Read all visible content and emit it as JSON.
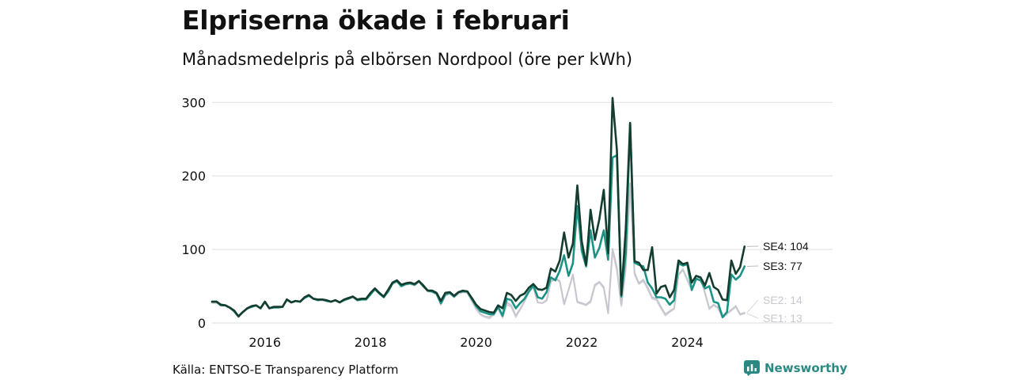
{
  "header": {
    "title": "Elpriserna ökade i februari",
    "subtitle": "Månadsmedelpris på elbörsen Nordpool (öre per kWh)"
  },
  "footer": {
    "source": "Källa: ENTSO-E Transparency Platform",
    "brand": "Newsworthy"
  },
  "colors": {
    "SE4": "#153d2f",
    "SE3": "#1a9384",
    "SE2": "#c7c5ce",
    "SE1": "#d7d5dc",
    "grid": "#e3e3e3",
    "brand": "#2a8a83"
  },
  "chart_data": {
    "type": "line",
    "x_start": "2015-01",
    "x_step": "month",
    "xlim": [
      "2015-01",
      "2026-10"
    ],
    "x_ticks": [
      "2016",
      "2018",
      "2020",
      "2022",
      "2024"
    ],
    "ylim": [
      0,
      310
    ],
    "y_ticks": [
      0,
      100,
      200,
      300
    ],
    "grid": true,
    "end_labels": [
      "SE4: 104",
      "SE3: 77",
      "SE2: 14",
      "SE1: 13"
    ],
    "series": [
      {
        "name": "SE4",
        "values": [
          29,
          29,
          25,
          24,
          21,
          17,
          9,
          15,
          20,
          23,
          24,
          20,
          29,
          20,
          22,
          22,
          22,
          32,
          28,
          30,
          29,
          35,
          38,
          33,
          32,
          32,
          31,
          29,
          31,
          28,
          32,
          34,
          36,
          32,
          33,
          33,
          41,
          47,
          41,
          36,
          45,
          55,
          58,
          52,
          54,
          55,
          53,
          57,
          51,
          44,
          44,
          41,
          30,
          41,
          42,
          37,
          42,
          44,
          43,
          34,
          25,
          19,
          17,
          15,
          14,
          24,
          20,
          41,
          38,
          30,
          37,
          40,
          48,
          53,
          46,
          45,
          48,
          74,
          70,
          85,
          123,
          89,
          108,
          187,
          111,
          79,
          154,
          113,
          141,
          181,
          95,
          306,
          235,
          38,
          128,
          272,
          84,
          82,
          72,
          72,
          103,
          40,
          49,
          51,
          35,
          45,
          85,
          80,
          82,
          55,
          64,
          62,
          51,
          68,
          49,
          45,
          32,
          31,
          85,
          67,
          76,
          104
        ],
        "label": "SE4: 104"
      },
      {
        "name": "SE3",
        "values": [
          29,
          29,
          24,
          24,
          21,
          16,
          9,
          15,
          20,
          22,
          24,
          20,
          29,
          20,
          21,
          21,
          22,
          32,
          28,
          30,
          29,
          34,
          37,
          33,
          31,
          32,
          30,
          29,
          31,
          28,
          31,
          33,
          36,
          31,
          32,
          32,
          39,
          46,
          40,
          35,
          43,
          54,
          57,
          50,
          53,
          54,
          52,
          57,
          50,
          44,
          43,
          40,
          27,
          39,
          41,
          36,
          42,
          43,
          43,
          33,
          23,
          16,
          14,
          12,
          12,
          22,
          10,
          33,
          31,
          20,
          27,
          33,
          43,
          51,
          35,
          33,
          42,
          62,
          58,
          71,
          92,
          64,
          81,
          159,
          98,
          77,
          126,
          89,
          102,
          126,
          86,
          225,
          228,
          36,
          95,
          272,
          82,
          79,
          77,
          55,
          47,
          35,
          35,
          33,
          25,
          31,
          81,
          78,
          80,
          45,
          60,
          58,
          47,
          50,
          29,
          27,
          8,
          15,
          66,
          59,
          64,
          77
        ],
        "label": "SE3: 77"
      },
      {
        "name": "SE2",
        "values": [
          28,
          28,
          24,
          24,
          21,
          16,
          8,
          15,
          19,
          22,
          24,
          20,
          28,
          20,
          21,
          21,
          22,
          31,
          28,
          30,
          29,
          34,
          37,
          33,
          31,
          31,
          30,
          29,
          31,
          28,
          31,
          33,
          35,
          31,
          32,
          32,
          39,
          46,
          40,
          35,
          42,
          53,
          56,
          50,
          52,
          53,
          51,
          56,
          49,
          43,
          42,
          39,
          25,
          37,
          40,
          35,
          40,
          42,
          41,
          30,
          19,
          12,
          9,
          8,
          12,
          20,
          8,
          28,
          24,
          10,
          19,
          30,
          42,
          49,
          28,
          27,
          31,
          56,
          61,
          57,
          26,
          45,
          66,
          29,
          27,
          25,
          30,
          52,
          56,
          49,
          14,
          101,
          75,
          25,
          77,
          190,
          68,
          54,
          59,
          48,
          35,
          33,
          22,
          12,
          16,
          20,
          66,
          73,
          59,
          45,
          60,
          62,
          41,
          20,
          25,
          21,
          8,
          13,
          18,
          23,
          12,
          14
        ],
        "label": "SE2: 14"
      },
      {
        "name": "SE1",
        "values": [
          27,
          27,
          24,
          24,
          21,
          16,
          8,
          15,
          19,
          22,
          24,
          20,
          28,
          20,
          21,
          21,
          22,
          31,
          28,
          30,
          29,
          34,
          37,
          33,
          31,
          31,
          30,
          29,
          31,
          28,
          31,
          33,
          35,
          31,
          32,
          32,
          39,
          46,
          40,
          35,
          42,
          53,
          56,
          50,
          52,
          53,
          51,
          56,
          49,
          43,
          42,
          39,
          25,
          37,
          40,
          35,
          40,
          42,
          41,
          30,
          19,
          11,
          8,
          6,
          11,
          20,
          7,
          25,
          22,
          8,
          18,
          29,
          42,
          49,
          28,
          27,
          30,
          56,
          60,
          56,
          25,
          45,
          65,
          28,
          26,
          24,
          28,
          50,
          55,
          47,
          13,
          98,
          71,
          23,
          73,
          185,
          66,
          53,
          57,
          46,
          33,
          31,
          20,
          10,
          15,
          19,
          65,
          72,
          58,
          44,
          59,
          61,
          40,
          19,
          24,
          20,
          7,
          12,
          17,
          22,
          11,
          13
        ],
        "label": "SE1: 13"
      }
    ]
  }
}
